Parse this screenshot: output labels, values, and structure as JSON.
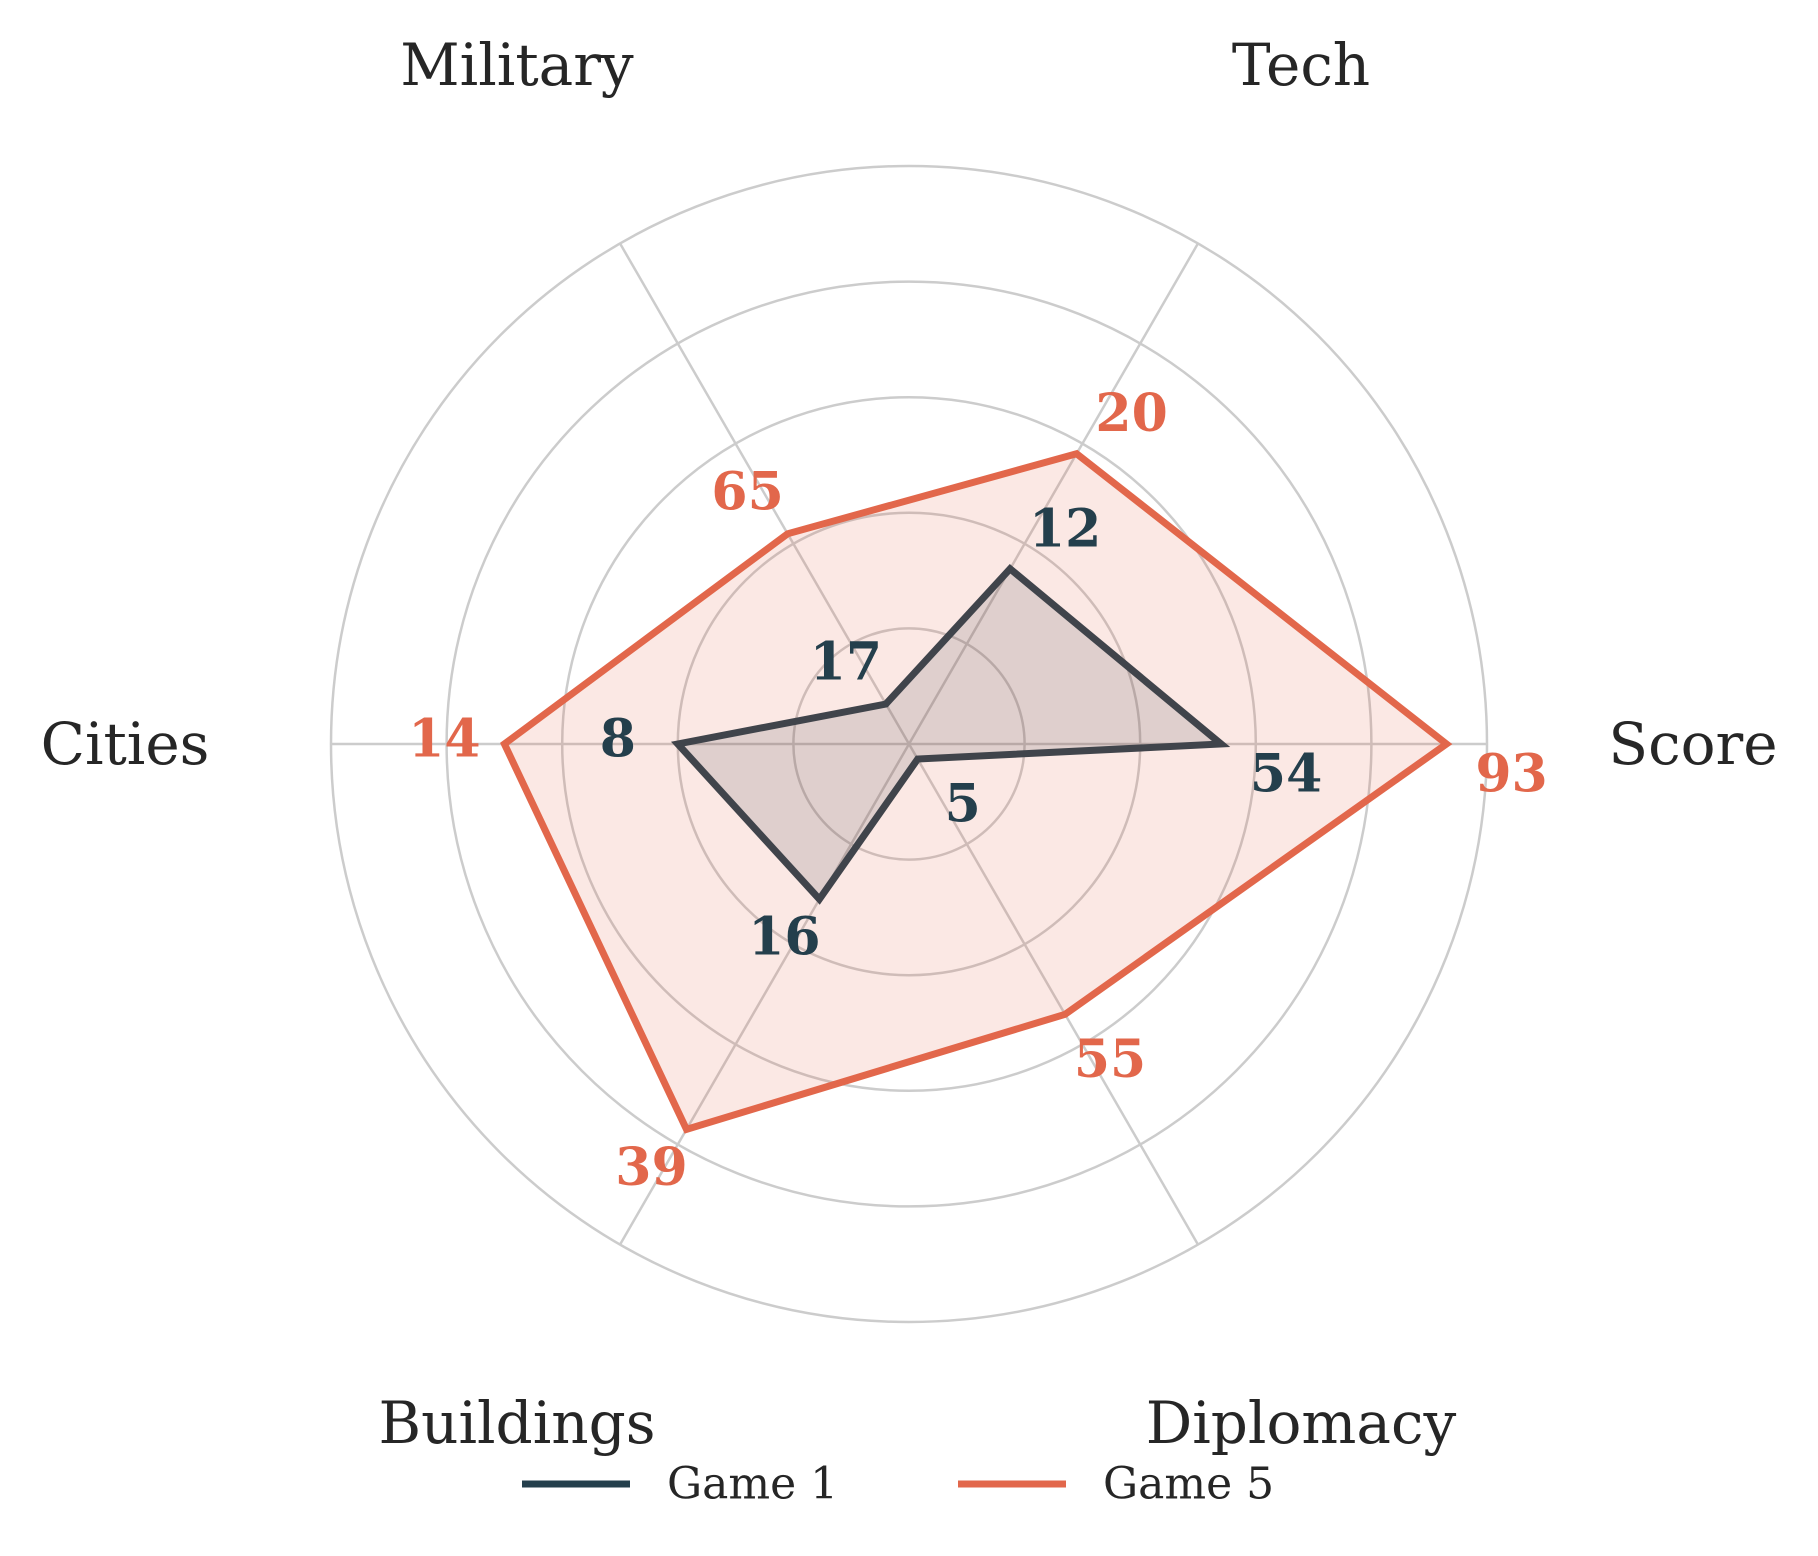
{
  "chart_data": {
    "type": "radar",
    "axes": [
      "Score",
      "Tech",
      "Military",
      "Cities",
      "Buildings",
      "Diplomacy"
    ],
    "series": [
      {
        "name": "Game 1",
        "color": "#243f4c",
        "fill": "#243f4c",
        "values": [
          54,
          12,
          17,
          8,
          16,
          5
        ],
        "normalized": [
          0.54,
          0.35,
          0.08,
          0.4,
          0.31,
          0.03
        ]
      },
      {
        "name": "Game 5",
        "color": "#e2674b",
        "fill": "#e2674b",
        "values": [
          93,
          20,
          65,
          14,
          39,
          55
        ],
        "normalized": [
          0.93,
          0.58,
          0.42,
          0.7,
          0.77,
          0.54
        ]
      }
    ],
    "grid_rings": [
      0.2,
      0.4,
      0.6,
      0.8,
      1.0
    ],
    "grid": true,
    "legend": {
      "position": "bottom-center",
      "entries": [
        "Game 1",
        "Game 5"
      ]
    }
  }
}
